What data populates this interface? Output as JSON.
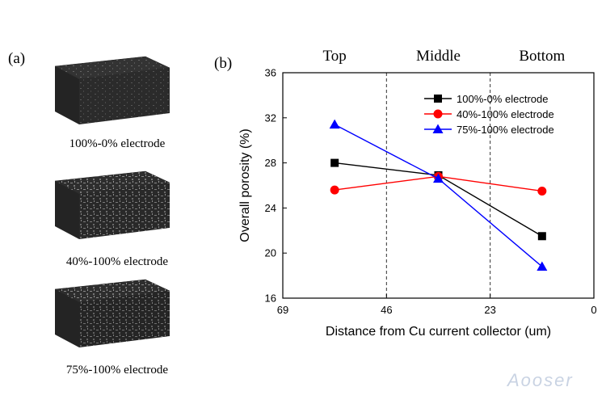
{
  "panel_a": {
    "label": "(a)",
    "captions": [
      "100%-0% electrode",
      "40%-100% electrode",
      "75%-100% electrode"
    ]
  },
  "panel_b": {
    "label": "(b)"
  },
  "watermark": "Aooser",
  "colors": {
    "black_series": "#000000",
    "red_series": "#ff0000",
    "blue_series": "#0000ff",
    "cube_top": "#4a4a4a",
    "cube_front": "#2f2f2f",
    "cube_side": "#1f1f1f"
  },
  "chart_data": {
    "type": "line",
    "xlabel": "Distance from Cu current collector (um)",
    "ylabel": "Overall porosity (%)",
    "xlim": [
      69,
      0
    ],
    "ylim": [
      16,
      36
    ],
    "x_ticks": [
      69,
      46,
      23,
      0
    ],
    "y_ticks": [
      16,
      20,
      24,
      28,
      32,
      36
    ],
    "region_labels": [
      "Top",
      "Middle",
      "Bottom"
    ],
    "region_boundaries": [
      46,
      23
    ],
    "legend_position": "top-right",
    "x": [
      57.5,
      34.5,
      11.5
    ],
    "series": [
      {
        "name": "100%-0% electrode",
        "marker": "square",
        "color": "#000000",
        "values": [
          28.0,
          26.9,
          21.5
        ]
      },
      {
        "name": "40%-100% electrode",
        "marker": "circle",
        "color": "#ff0000",
        "values": [
          25.6,
          26.8,
          25.5
        ]
      },
      {
        "name": "75%-100% electrode",
        "marker": "triangle",
        "color": "#0000ff",
        "values": [
          31.4,
          26.6,
          18.8
        ]
      }
    ]
  }
}
